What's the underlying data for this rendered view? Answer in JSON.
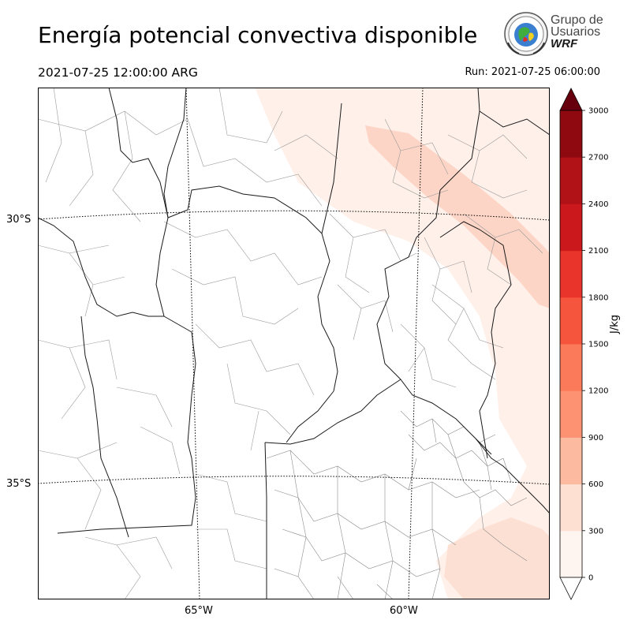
{
  "header": {
    "title": "Energía potencial convectiva disponible",
    "valid_time": "2021-07-25 12:00:00 ARG",
    "run_time": "Run: 2021-07-25 06:00:00"
  },
  "logo": {
    "line1": "Grupo de",
    "line2": "Usuarios",
    "line3": "WRF"
  },
  "map": {
    "lat_labels": [
      "30°S",
      "35°S"
    ],
    "lon_labels": [
      "65°W",
      "60°W"
    ]
  },
  "colorbar": {
    "label": "J/kg",
    "ticks": [
      "0",
      "300",
      "600",
      "900",
      "1200",
      "1500",
      "1800",
      "2100",
      "2400",
      "2700",
      "3000"
    ],
    "colors": [
      "#fff5f0",
      "#fee0d2",
      "#fcbba1",
      "#fc9272",
      "#fb7a5a",
      "#f5553c",
      "#e8342a",
      "#cb181d",
      "#b01217",
      "#8e0a10"
    ],
    "over_color": "#67000d",
    "under_color": "#ffffff"
  },
  "chart_data": {
    "type": "heatmap",
    "variable": "CAPE",
    "units": "J/kg",
    "levels": [
      0,
      300,
      600,
      900,
      1200,
      1500,
      1800,
      2100,
      2400,
      2700,
      3000
    ],
    "extent": "arrows both",
    "observed_range_band": "0-600"
  }
}
